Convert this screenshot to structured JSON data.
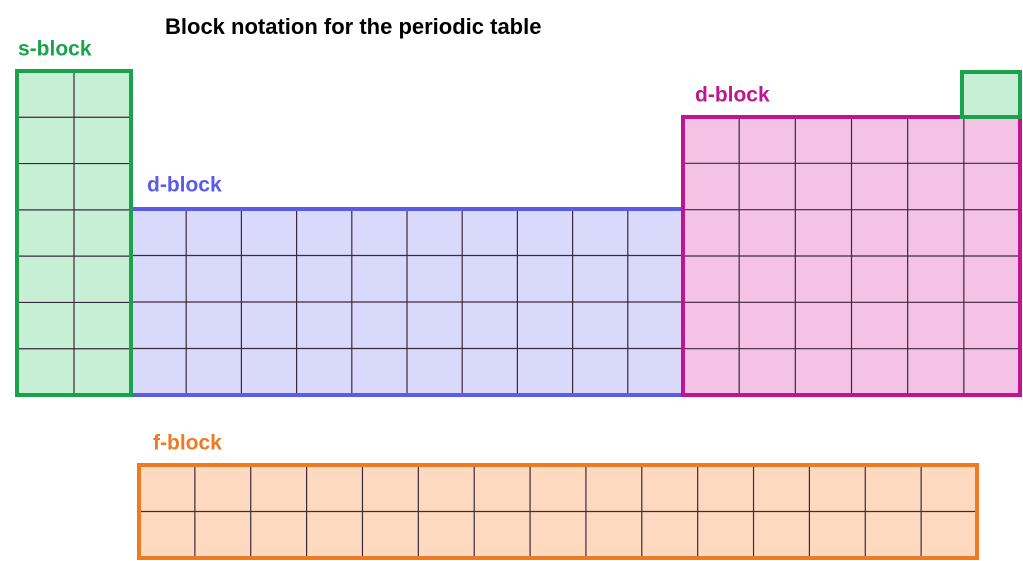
{
  "title": "Block notation for the periodic table",
  "blocks": [
    {
      "label": "s-block"
    },
    {
      "label": "d-block"
    },
    {
      "label": "d-block"
    },
    {
      "label": "f-block"
    }
  ]
}
